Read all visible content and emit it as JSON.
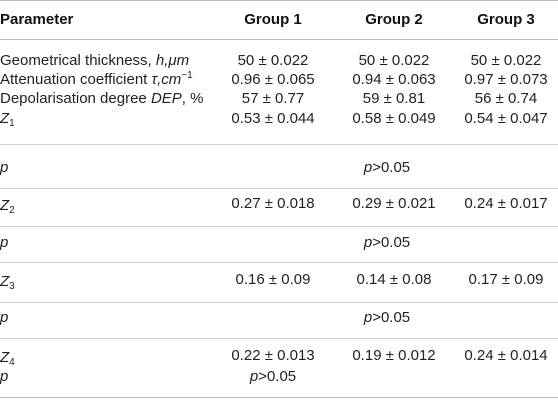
{
  "headers": {
    "parameter": "Parameter",
    "group1": "Group 1",
    "group2": "Group 2",
    "group3": "Group 3"
  },
  "rows": {
    "thickness": {
      "label_text": "Geometrical thickness, ",
      "label_sym": "h",
      "label_unit": ",μm",
      "g1": "50 ± 0.022",
      "g2": "50 ± 0.022",
      "g3": "50 ± 0.022"
    },
    "attenuation": {
      "label_text": "Attenuation coefficient ",
      "label_sym": "τ",
      "label_unit": ",cm",
      "label_exp": "−1",
      "g1": "0.96 ± 0.065",
      "g2": "0.94 ± 0.063",
      "g3": "0.97 ± 0.073"
    },
    "depolarisation": {
      "label_text": "Depolarisation degree ",
      "label_sym": "DEP",
      "label_unit": ", %",
      "g1": "57 ± 0.77",
      "g2": "59 ± 0.81",
      "g3": "56 ± 0.74"
    },
    "z1": {
      "sym": "Z",
      "sub": "1",
      "g1": "0.53 ± 0.044",
      "g2": "0.58 ± 0.049",
      "g3": "0.54 ± 0.047"
    },
    "p1": {
      "sym": "p",
      "value_sym": "p",
      "value_rest": ">0.05"
    },
    "z2": {
      "sym": "Z",
      "sub": "2",
      "g1": "0.27 ± 0.018",
      "g2": "0.29 ± 0.021",
      "g3": "0.24 ± 0.017"
    },
    "p2": {
      "sym": "p",
      "value_sym": "p",
      "value_rest": ">0.05"
    },
    "z3": {
      "sym": "Z",
      "sub": "3",
      "g1": "0.16 ± 0.09",
      "g2": "0.14 ± 0.08",
      "g3": "0.17 ± 0.09"
    },
    "p3": {
      "sym": "p",
      "value_sym": "p",
      "value_rest": ">0.05"
    },
    "z4": {
      "sym": "Z",
      "sub": "4",
      "g1": "0.22 ± 0.013",
      "g2": "0.19 ± 0.012",
      "g3": "0.24 ± 0.014"
    },
    "p4": {
      "sym": "p",
      "value_sym": "p",
      "value_rest": ">0.05"
    }
  }
}
